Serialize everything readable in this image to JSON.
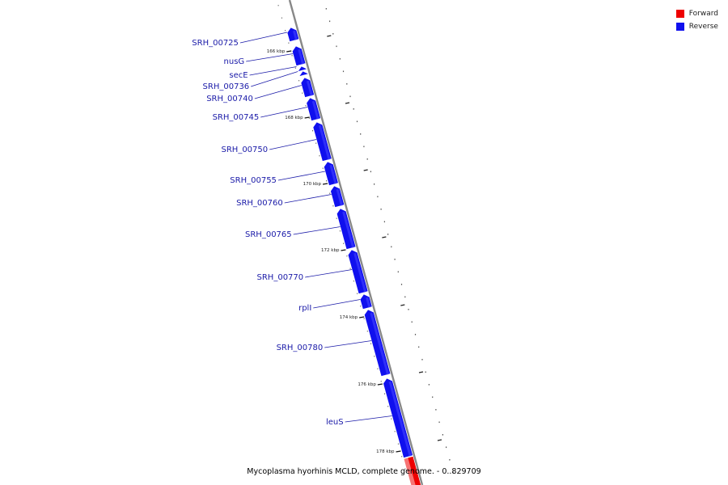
{
  "legend": {
    "forward": {
      "label": "Forward",
      "color": "#ee0000"
    },
    "reverse": {
      "label": "Reverse",
      "color": "#1010ee"
    }
  },
  "caption": "Mycoplasma hyorhinis MCLD, complete genome. - 0..829709",
  "genes": [
    {
      "name": "SRH_00725",
      "strand": "reverse"
    },
    {
      "name": "nusG",
      "strand": "reverse"
    },
    {
      "name": "secE",
      "strand": "reverse"
    },
    {
      "name": "SRH_00736",
      "strand": "reverse"
    },
    {
      "name": "SRH_00740",
      "strand": "reverse"
    },
    {
      "name": "SRH_00745",
      "strand": "reverse"
    },
    {
      "name": "SRH_00750",
      "strand": "reverse"
    },
    {
      "name": "SRH_00755",
      "strand": "reverse"
    },
    {
      "name": "SRH_00760",
      "strand": "reverse"
    },
    {
      "name": "SRH_00765",
      "strand": "reverse"
    },
    {
      "name": "SRH_00770",
      "strand": "reverse"
    },
    {
      "name": "rplI",
      "strand": "reverse"
    },
    {
      "name": "SRH_00780",
      "strand": "reverse"
    },
    {
      "name": "leuS",
      "strand": "reverse"
    },
    {
      "name": "",
      "strand": "forward"
    }
  ],
  "ticks": [
    "166 kbp",
    "168 kbp",
    "170 kbp",
    "172 kbp",
    "174 kbp",
    "176 kbp",
    "178 kbp"
  ]
}
